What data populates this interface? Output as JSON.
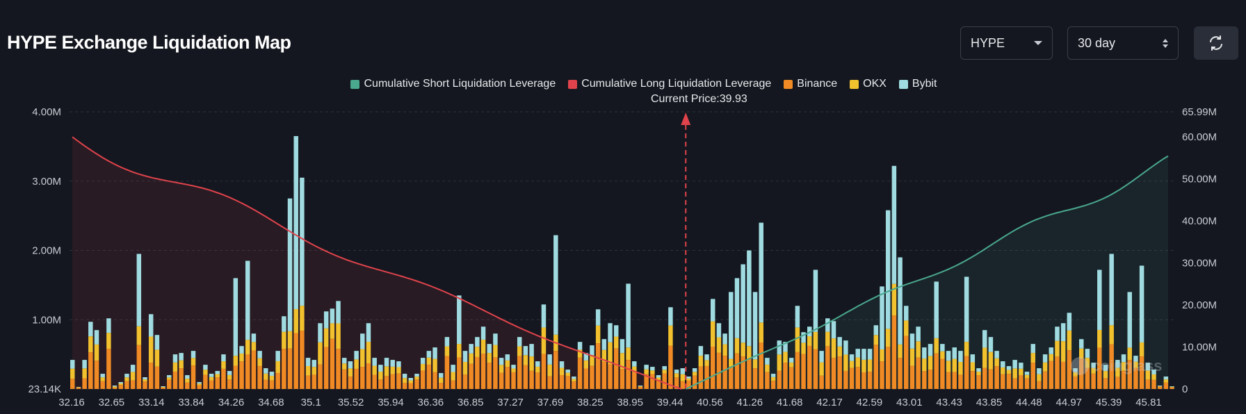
{
  "header": {
    "title": "HYPE Exchange Liquidation Map",
    "symbol_select": {
      "value": "HYPE"
    },
    "range_select": {
      "value": "30 day"
    }
  },
  "legend": {
    "short": "Cumulative Short Liquidation Leverage",
    "long": "Cumulative Long Liquidation Leverage",
    "binance": "Binance",
    "okx": "OKX",
    "bybit": "Bybit"
  },
  "current_price_label": "Current Price:39.93",
  "watermark": "coinglass",
  "colors": {
    "short": "#4aa88f",
    "long": "#e0434c",
    "binance": "#f08a24",
    "okx": "#f2c12e",
    "bybit": "#9fdbe0",
    "background": "#14171f"
  },
  "chart_data": {
    "type": "bar",
    "current_price": 39.93,
    "x_range": [
      32.16,
      46.1
    ],
    "x_ticks": [
      "32.16",
      "32.65",
      "33.14",
      "33.84",
      "34.26",
      "34.68",
      "35.1",
      "35.52",
      "35.94",
      "36.36",
      "36.85",
      "37.27",
      "37.69",
      "38.25",
      "38.95",
      "39.44",
      "40.56",
      "41.26",
      "41.68",
      "42.17",
      "42.59",
      "43.01",
      "43.43",
      "43.85",
      "44.48",
      "44.97",
      "45.39",
      "45.81"
    ],
    "y_left": {
      "range": [
        0,
        4000000
      ],
      "tick_labels": [
        "23.14K",
        "1.00M",
        "2.00M",
        "3.00M",
        "4.00M"
      ],
      "tick_values": [
        0,
        1000000,
        2000000,
        3000000,
        4000000
      ]
    },
    "y_right": {
      "range": [
        0,
        65990000
      ],
      "tick_labels": [
        "0",
        "10.00M",
        "20.00M",
        "30.00M",
        "40.00M",
        "50.00M",
        "60.00M",
        "65.99M"
      ],
      "tick_values": [
        0,
        10000000,
        20000000,
        30000000,
        40000000,
        50000000,
        60000000,
        65990000
      ]
    },
    "bar_totals": [
      0.42,
      0.03,
      0.42,
      0.97,
      0.85,
      0.22,
      1.02,
      0.05,
      0.1,
      0.22,
      0.35,
      1.95,
      0.17,
      1.08,
      0.78,
      0.04,
      0.2,
      0.5,
      0.52,
      0.2,
      0.55,
      0.1,
      0.35,
      0.22,
      0.26,
      0.5,
      0.26,
      1.6,
      0.62,
      1.85,
      0.8,
      0.55,
      0.3,
      0.25,
      0.55,
      1.05,
      2.75,
      3.65,
      3.05,
      0.45,
      0.42,
      0.95,
      1.12,
      1.16,
      1.27,
      0.45,
      0.4,
      0.55,
      0.8,
      0.95,
      0.45,
      0.35,
      0.45,
      0.42,
      0.4,
      0.22,
      0.16,
      0.22,
      0.45,
      0.55,
      0.6,
      0.23,
      0.75,
      0.35,
      1.35,
      0.55,
      0.65,
      0.75,
      0.9,
      0.65,
      0.8,
      0.45,
      0.5,
      0.35,
      0.75,
      0.62,
      0.65,
      0.4,
      1.22,
      0.5,
      2.22,
      0.4,
      0.28,
      0.18,
      0.68,
      0.52,
      0.63,
      1.15,
      0.72,
      0.95,
      0.92,
      0.72,
      1.52,
      0.4,
      0.05,
      0.35,
      0.32,
      0.2,
      0.33,
      1.18,
      0.28,
      0.3,
      0.18,
      0.3,
      0.62,
      0.5,
      1.3,
      0.95,
      0.8,
      1.4,
      1.6,
      1.8,
      2.0,
      1.4,
      2.4,
      0.45,
      0.22,
      0.7,
      0.68,
      0.45,
      1.2,
      0.82,
      0.9,
      1.72,
      0.55,
      1.02,
      0.98,
      0.75,
      0.7,
      0.5,
      0.58,
      0.58,
      0.58,
      0.92,
      1.48,
      2.58,
      3.22,
      1.9,
      1.2,
      0.8,
      0.9,
      0.6,
      0.65,
      1.55,
      0.65,
      0.55,
      0.6,
      0.55,
      1.62,
      0.5,
      0.3,
      0.85,
      0.75,
      0.55,
      0.4,
      0.33,
      0.42,
      0.38,
      0.25,
      0.65,
      0.3,
      0.5,
      0.6,
      0.9,
      0.95,
      1.1,
      0.3,
      0.72,
      0.58,
      0.38,
      1.72,
      0.35,
      1.95,
      0.42,
      0.5,
      1.4,
      0.48,
      1.78,
      0.38,
      0.28,
      0.05,
      0.18,
      0.04
    ],
    "bar_shares": "each bar split among Binance (orange), OKX (yellow), Bybit (light blue); series values in M"
  }
}
